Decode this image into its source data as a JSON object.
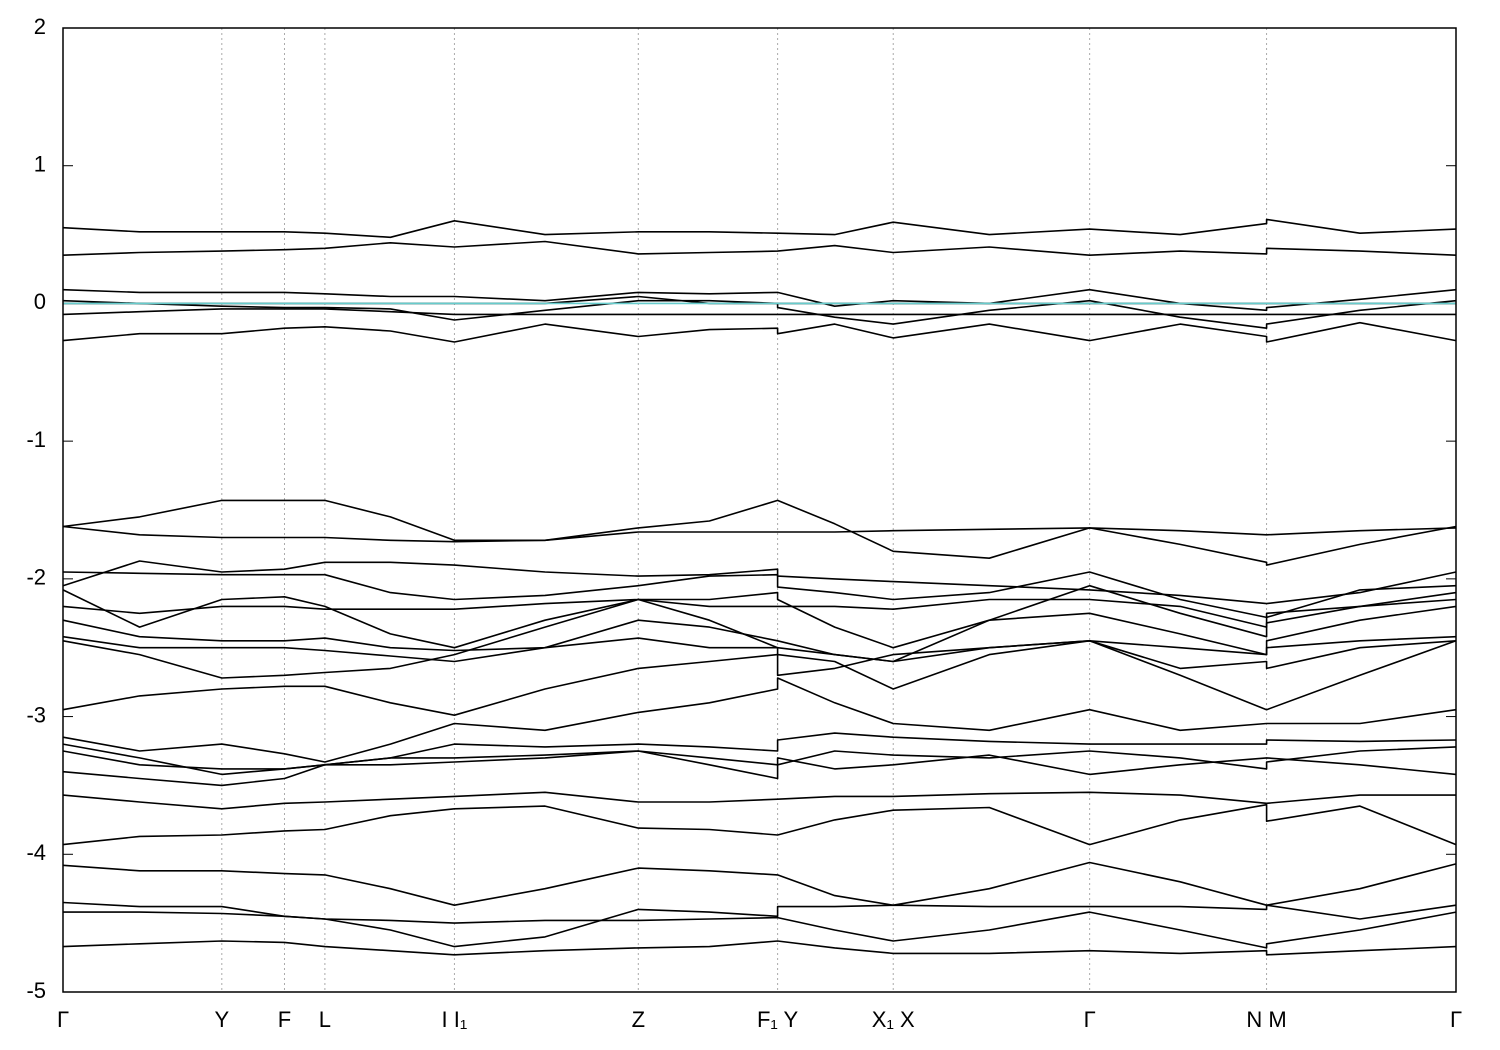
{
  "chart_data": {
    "type": "line",
    "x": [
      0,
      0.055,
      0.114,
      0.159,
      0.188,
      0.235,
      0.281,
      0.346,
      0.413,
      0.464,
      0.513,
      0.513,
      0.554,
      0.596,
      0.665,
      0.737,
      0.802,
      0.864,
      0.864,
      0.931,
      1
    ],
    "xlim": [
      0,
      1
    ],
    "xticks": [
      {
        "value": 0,
        "label": "Γ"
      },
      {
        "value": 0.114,
        "label": "Y"
      },
      {
        "value": 0.159,
        "label": "F"
      },
      {
        "value": 0.188,
        "label": "L"
      },
      {
        "value": 0.281,
        "label": "I  I₁"
      },
      {
        "value": 0.413,
        "label": "Z"
      },
      {
        "value": 0.513,
        "label": "F₁ Y"
      },
      {
        "value": 0.596,
        "label": "X₁ X"
      },
      {
        "value": 0.737,
        "label": "Γ"
      },
      {
        "value": 0.864,
        "label": "N M"
      },
      {
        "value": 1,
        "label": "Γ"
      }
    ],
    "xgrid": true,
    "ylim": [
      -5,
      2
    ],
    "yticks": [
      2,
      1,
      0,
      -1,
      -2,
      -3,
      -4,
      -5
    ],
    "series": [
      {
        "color": "#000000",
        "values": [
          0.55,
          0.52,
          0.52,
          0.52,
          0.51,
          0.48,
          0.6,
          0.5,
          0.52,
          0.52,
          0.51,
          0.51,
          0.5,
          0.59,
          0.5,
          0.54,
          0.5,
          0.58,
          0.61,
          0.51,
          0.54
        ]
      },
      {
        "color": "#000000",
        "values": [
          0.35,
          0.37,
          0.38,
          0.39,
          0.4,
          0.44,
          0.41,
          0.45,
          0.36,
          0.37,
          0.38,
          0.38,
          0.42,
          0.37,
          0.41,
          0.35,
          0.38,
          0.36,
          0.4,
          0.38,
          0.35
        ]
      },
      {
        "color": "#000000",
        "values": [
          0.1,
          0.08,
          0.08,
          0.08,
          0.07,
          0.05,
          0.05,
          0.02,
          0.08,
          0.07,
          0.08,
          0.08,
          -0.02,
          0.02,
          0.0,
          0.1,
          0.0,
          -0.05,
          -0.03,
          0.03,
          0.1
        ]
      },
      {
        "color": "#000000",
        "values": [
          0.0,
          0.0,
          0.0,
          0.0,
          0.0,
          0.0,
          0.0,
          0.0,
          0.05,
          0.0,
          0.0,
          0.0,
          0.0,
          0.0,
          0.0,
          0.0,
          0.0,
          0.0,
          0.0,
          0.0,
          0.0
        ]
      },
      {
        "color": "#000000",
        "values": [
          -0.08,
          -0.06,
          -0.04,
          -0.04,
          -0.04,
          -0.06,
          -0.08,
          -0.08,
          -0.08,
          -0.08,
          -0.08,
          -0.08,
          -0.08,
          -0.08,
          -0.08,
          -0.08,
          -0.08,
          -0.08,
          -0.08,
          -0.08,
          -0.08
        ]
      },
      {
        "color": "#000000",
        "values": [
          -0.27,
          -0.22,
          -0.22,
          -0.18,
          -0.17,
          -0.2,
          -0.28,
          -0.15,
          -0.24,
          -0.19,
          -0.18,
          -0.22,
          -0.15,
          -0.25,
          -0.15,
          -0.27,
          -0.15,
          -0.24,
          -0.28,
          -0.14,
          -0.27
        ]
      },
      {
        "color": "#000000",
        "values": [
          0.02,
          0.0,
          -0.02,
          -0.03,
          -0.03,
          -0.04,
          -0.12,
          -0.05,
          0.02,
          0.02,
          0.0,
          -0.03,
          -0.1,
          -0.15,
          -0.05,
          0.02,
          -0.1,
          -0.18,
          -0.15,
          -0.05,
          0.02
        ]
      },
      {
        "color": "#000000",
        "values": [
          -1.62,
          -1.55,
          -1.43,
          -1.43,
          -1.43,
          -1.55,
          -1.72,
          -1.72,
          -1.63,
          -1.58,
          -1.43,
          -1.43,
          -1.6,
          -1.8,
          -1.85,
          -1.63,
          -1.75,
          -1.88,
          -1.9,
          -1.75,
          -1.62
        ]
      },
      {
        "color": "#000000",
        "values": [
          -1.62,
          -1.68,
          -1.7,
          -1.7,
          -1.7,
          -1.72,
          -1.73,
          -1.72,
          -1.66,
          -1.66,
          -1.66,
          -1.66,
          -1.66,
          -1.65,
          -1.64,
          -1.63,
          -1.65,
          -1.68,
          -1.68,
          -1.65,
          -1.63
        ]
      },
      {
        "color": "#000000",
        "values": [
          -2.05,
          -1.87,
          -1.95,
          -1.93,
          -1.88,
          -1.88,
          -1.9,
          -1.95,
          -1.98,
          -1.97,
          -1.93,
          -1.98,
          -2.0,
          -2.02,
          -2.05,
          -2.08,
          -2.12,
          -2.18,
          -2.18,
          -2.1,
          -1.95
        ]
      },
      {
        "color": "#000000",
        "values": [
          -1.95,
          -1.96,
          -1.97,
          -1.97,
          -1.97,
          -2.1,
          -2.15,
          -2.12,
          -2.05,
          -1.98,
          -1.97,
          -2.06,
          -2.1,
          -2.15,
          -2.1,
          -1.95,
          -2.15,
          -2.28,
          -2.28,
          -2.08,
          -2.05
        ]
      },
      {
        "color": "#000000",
        "values": [
          -2.08,
          -2.35,
          -2.15,
          -2.13,
          -2.2,
          -2.4,
          -2.5,
          -2.3,
          -2.15,
          -2.15,
          -2.1,
          -2.15,
          -2.35,
          -2.5,
          -2.3,
          -2.05,
          -2.25,
          -2.42,
          -2.32,
          -2.2,
          -2.1
        ]
      },
      {
        "color": "#000000",
        "values": [
          -2.2,
          -2.25,
          -2.2,
          -2.2,
          -2.22,
          -2.22,
          -2.22,
          -2.18,
          -2.15,
          -2.2,
          -2.2,
          -2.2,
          -2.2,
          -2.22,
          -2.15,
          -2.15,
          -2.2,
          -2.35,
          -2.25,
          -2.2,
          -2.15
        ]
      },
      {
        "color": "#000000",
        "values": [
          -2.3,
          -2.42,
          -2.45,
          -2.45,
          -2.43,
          -2.5,
          -2.52,
          -2.5,
          -2.3,
          -2.35,
          -2.45,
          -2.45,
          -2.55,
          -2.6,
          -2.3,
          -2.25,
          -2.4,
          -2.55,
          -2.45,
          -2.3,
          -2.2
        ]
      },
      {
        "color": "#000000",
        "values": [
          -2.42,
          -2.5,
          -2.5,
          -2.5,
          -2.52,
          -2.56,
          -2.6,
          -2.5,
          -2.43,
          -2.5,
          -2.5,
          -2.5,
          -2.55,
          -2.6,
          -2.5,
          -2.45,
          -2.5,
          -2.55,
          -2.5,
          -2.45,
          -2.42
        ]
      },
      {
        "color": "#000000",
        "values": [
          -2.45,
          -2.55,
          -2.72,
          -2.7,
          -2.68,
          -2.65,
          -2.55,
          -2.35,
          -2.15,
          -2.3,
          -2.5,
          -2.7,
          -2.65,
          -2.55,
          -2.5,
          -2.45,
          -2.7,
          -2.95,
          -2.95,
          -2.7,
          -2.45
        ]
      },
      {
        "color": "#000000",
        "values": [
          -2.95,
          -2.85,
          -2.8,
          -2.78,
          -2.78,
          -2.9,
          -2.99,
          -2.8,
          -2.65,
          -2.6,
          -2.55,
          -2.55,
          -2.6,
          -2.8,
          -2.55,
          -2.45,
          -2.65,
          -2.6,
          -2.65,
          -2.5,
          -2.45
        ]
      },
      {
        "color": "#000000",
        "values": [
          -3.15,
          -3.25,
          -3.2,
          -3.27,
          -3.33,
          -3.2,
          -3.05,
          -3.1,
          -2.97,
          -2.9,
          -2.8,
          -2.72,
          -2.9,
          -3.05,
          -3.1,
          -2.95,
          -3.1,
          -3.05,
          -3.05,
          -3.05,
          -2.95
        ]
      },
      {
        "color": "#000000",
        "values": [
          -3.2,
          -3.3,
          -3.42,
          -3.38,
          -3.35,
          -3.3,
          -3.2,
          -3.22,
          -3.2,
          -3.22,
          -3.25,
          -3.17,
          -3.12,
          -3.15,
          -3.18,
          -3.2,
          -3.2,
          -3.2,
          -3.17,
          -3.18,
          -3.17
        ]
      },
      {
        "color": "#000000",
        "values": [
          -3.4,
          -3.45,
          -3.5,
          -3.45,
          -3.35,
          -3.3,
          -3.3,
          -3.28,
          -3.25,
          -3.35,
          -3.45,
          -3.35,
          -3.25,
          -3.28,
          -3.3,
          -3.25,
          -3.3,
          -3.38,
          -3.33,
          -3.25,
          -3.22
        ]
      },
      {
        "color": "#000000",
        "values": [
          -3.25,
          -3.35,
          -3.38,
          -3.38,
          -3.35,
          -3.35,
          -3.33,
          -3.3,
          -3.25,
          -3.3,
          -3.35,
          -3.3,
          -3.38,
          -3.35,
          -3.28,
          -3.42,
          -3.35,
          -3.3,
          -3.3,
          -3.35,
          -3.42
        ]
      },
      {
        "color": "#000000",
        "values": [
          -3.57,
          -3.62,
          -3.67,
          -3.63,
          -3.62,
          -3.6,
          -3.58,
          -3.55,
          -3.62,
          -3.62,
          -3.6,
          -3.6,
          -3.58,
          -3.58,
          -3.56,
          -3.55,
          -3.57,
          -3.63,
          -3.63,
          -3.57,
          -3.57
        ]
      },
      {
        "color": "#000000",
        "values": [
          -3.93,
          -3.87,
          -3.86,
          -3.83,
          -3.82,
          -3.72,
          -3.67,
          -3.65,
          -3.81,
          -3.82,
          -3.86,
          -3.86,
          -3.75,
          -3.68,
          -3.66,
          -3.93,
          -3.75,
          -3.64,
          -3.76,
          -3.65,
          -3.93
        ]
      },
      {
        "color": "#000000",
        "values": [
          -4.08,
          -4.12,
          -4.12,
          -4.14,
          -4.15,
          -4.25,
          -4.37,
          -4.25,
          -4.1,
          -4.12,
          -4.15,
          -4.15,
          -4.3,
          -4.37,
          -4.25,
          -4.06,
          -4.2,
          -4.37,
          -4.37,
          -4.25,
          -4.07
        ]
      },
      {
        "color": "#000000",
        "values": [
          -4.35,
          -4.38,
          -4.38,
          -4.45,
          -4.47,
          -4.55,
          -4.67,
          -4.6,
          -4.4,
          -4.42,
          -4.45,
          -4.38,
          -4.38,
          -4.37,
          -4.38,
          -4.38,
          -4.38,
          -4.4,
          -4.37,
          -4.47,
          -4.37
        ]
      },
      {
        "color": "#000000",
        "values": [
          -4.42,
          -4.42,
          -4.43,
          -4.45,
          -4.47,
          -4.48,
          -4.5,
          -4.48,
          -4.48,
          -4.47,
          -4.46,
          -4.46,
          -4.55,
          -4.63,
          -4.55,
          -4.42,
          -4.55,
          -4.68,
          -4.65,
          -4.55,
          -4.42
        ]
      },
      {
        "color": "#000000",
        "values": [
          -4.67,
          -4.65,
          -4.63,
          -4.64,
          -4.67,
          -4.7,
          -4.73,
          -4.7,
          -4.68,
          -4.67,
          -4.63,
          -4.63,
          -4.68,
          -4.72,
          -4.72,
          -4.7,
          -4.72,
          -4.7,
          -4.73,
          -4.7,
          -4.67
        ]
      },
      {
        "color": "#66cccc",
        "values": [
          0,
          0,
          0,
          0,
          0,
          0,
          0,
          0,
          0,
          0,
          0,
          0,
          0,
          0,
          0,
          0,
          0,
          0,
          0,
          0,
          0
        ]
      }
    ]
  }
}
